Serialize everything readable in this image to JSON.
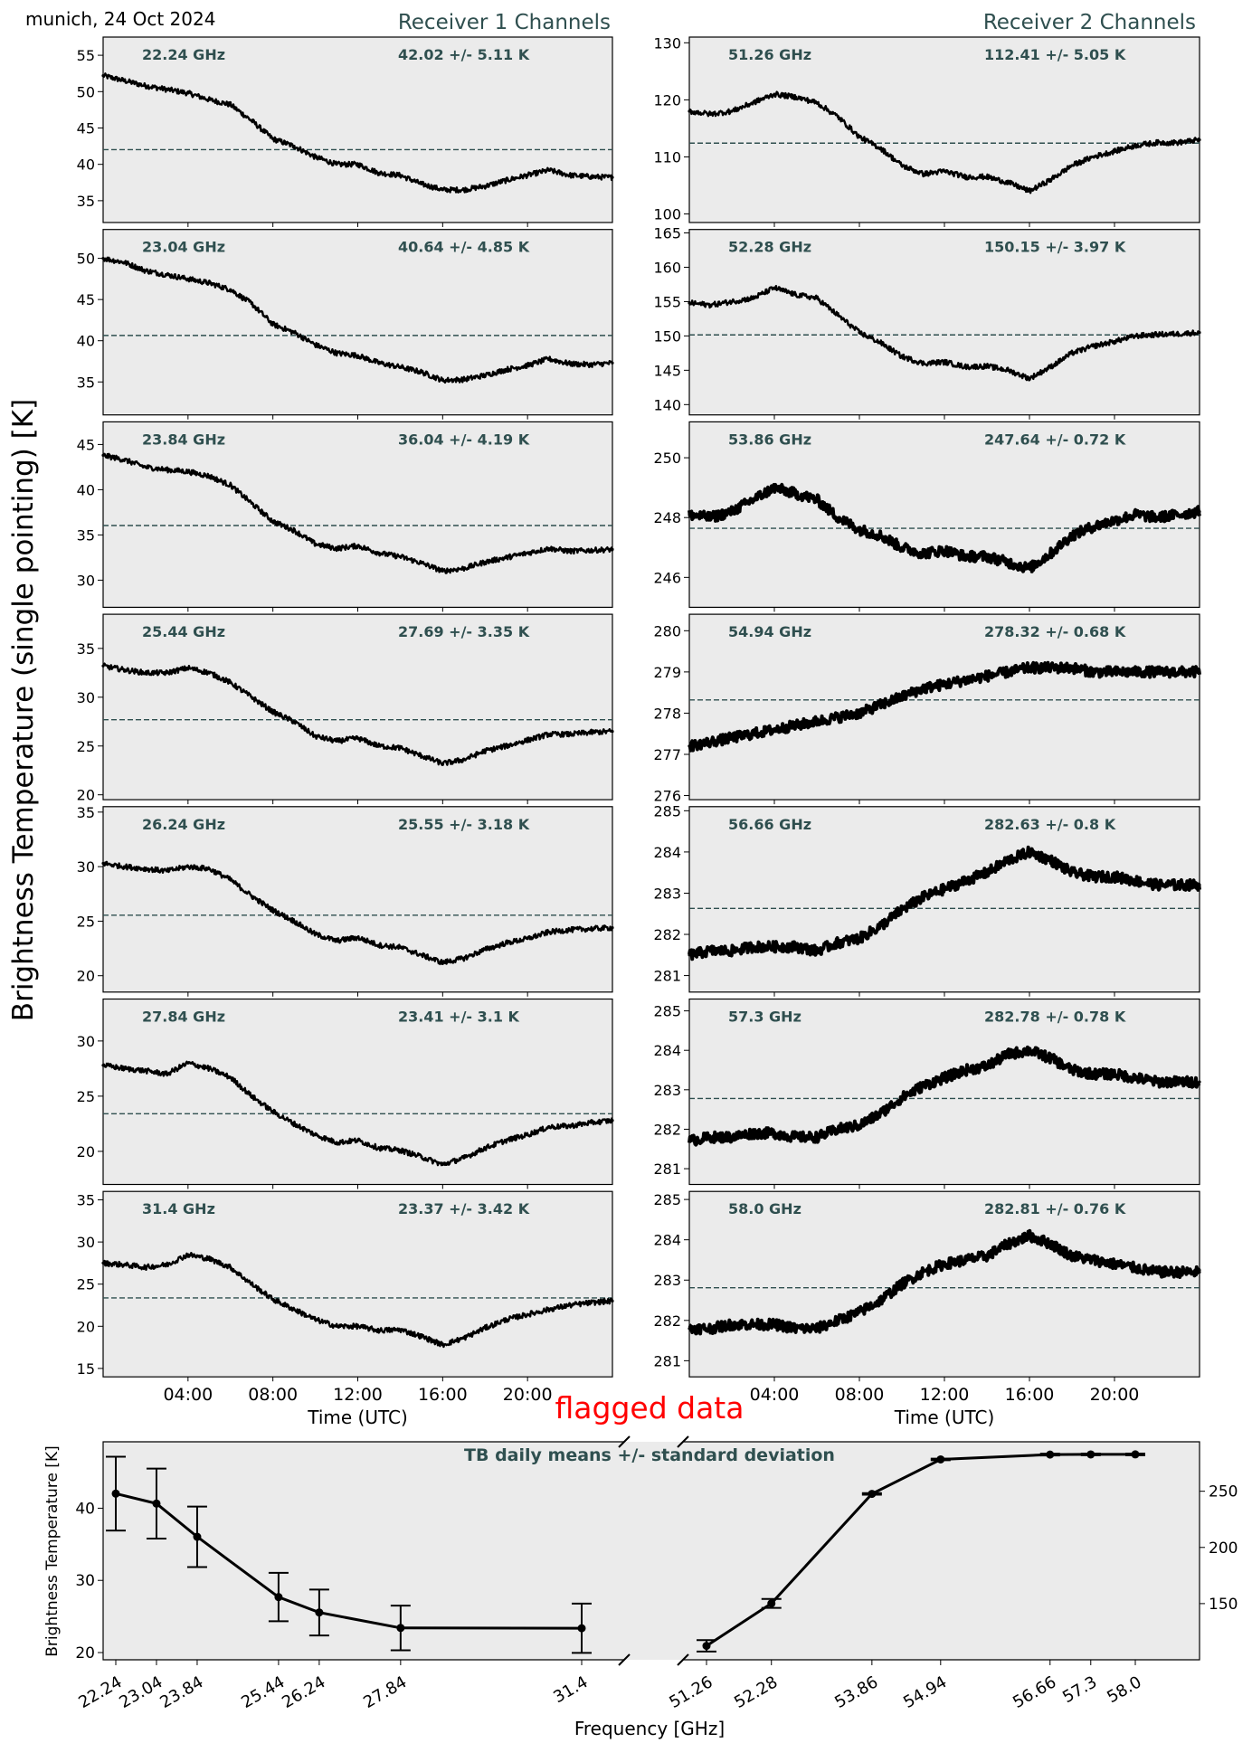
{
  "header": {
    "site_date": "munich, 24 Oct 2024",
    "receiver1_title": "Receiver 1 Channels",
    "receiver2_title": "Receiver 2 Channels",
    "y_label": "Brightness Temperature (single pointing) [K]",
    "flag_text": "flagged data"
  },
  "colors": {
    "panel_bg": "#ebebeb",
    "accent": "#2f4f4f",
    "line": "#000000",
    "flag": "#ff0000"
  },
  "chart_data": [
    {
      "type": "line",
      "receiver": "Receiver 1 Channels",
      "xlabel": "Time (UTC)",
      "xticks": [
        "04:00",
        "08:00",
        "12:00",
        "16:00",
        "20:00"
      ],
      "x_hours": [
        0,
        1,
        2,
        3,
        4,
        5,
        6,
        7,
        8,
        9,
        10,
        11,
        12,
        13,
        14,
        15,
        16,
        17,
        18,
        19,
        20,
        21,
        22,
        23,
        24
      ],
      "panels": [
        {
          "freq": "22.24 GHz",
          "stat": "42.02 +/- 5.11 K",
          "mean": 42.02,
          "ylim": [
            32,
            57.5
          ],
          "yticks": [
            35,
            40,
            45,
            50,
            55
          ],
          "values": [
            52.2,
            51.5,
            50.8,
            50.3,
            49.8,
            48.9,
            48.2,
            46.0,
            43.5,
            42.5,
            41.0,
            40.0,
            40.0,
            38.8,
            38.5,
            37.3,
            36.5,
            36.5,
            37.0,
            37.8,
            38.5,
            39.2,
            38.5,
            38.3,
            38.2
          ]
        },
        {
          "freq": "23.04 GHz",
          "stat": "40.64 +/- 4.85 K",
          "mean": 40.64,
          "ylim": [
            31,
            53.5
          ],
          "yticks": [
            35,
            40,
            45,
            50
          ],
          "values": [
            50.0,
            49.5,
            48.5,
            48.0,
            47.5,
            47.0,
            46.2,
            44.5,
            42.0,
            41.0,
            39.5,
            38.5,
            38.2,
            37.3,
            36.8,
            36.2,
            35.2,
            35.3,
            35.8,
            36.5,
            37.0,
            37.8,
            37.2,
            37.1,
            37.3
          ]
        },
        {
          "freq": "23.84 GHz",
          "stat": "36.04 +/- 4.19 K",
          "mean": 36.04,
          "ylim": [
            27,
            47.5
          ],
          "yticks": [
            30,
            35,
            40,
            45
          ],
          "values": [
            43.8,
            43.3,
            42.5,
            42.2,
            42.0,
            41.5,
            40.5,
            38.5,
            36.5,
            35.5,
            34.0,
            33.5,
            33.8,
            33.0,
            32.6,
            31.9,
            31.0,
            31.3,
            32.0,
            32.5,
            33.0,
            33.5,
            33.2,
            33.3,
            33.4
          ]
        },
        {
          "freq": "25.44 GHz",
          "stat": "27.69 +/- 3.35 K",
          "mean": 27.69,
          "ylim": [
            19.5,
            38.5
          ],
          "yticks": [
            20,
            25,
            30,
            35
          ],
          "values": [
            33.2,
            32.8,
            32.5,
            32.5,
            33.0,
            32.5,
            31.5,
            30.0,
            28.5,
            27.5,
            26.0,
            25.5,
            25.8,
            25.0,
            24.8,
            24.0,
            23.2,
            23.6,
            24.5,
            25.0,
            25.6,
            26.2,
            26.2,
            26.4,
            26.5
          ]
        },
        {
          "freq": "26.24 GHz",
          "stat": "25.55 +/- 3.18 K",
          "mean": 25.55,
          "ylim": [
            18.5,
            35.5
          ],
          "yticks": [
            20,
            25,
            30,
            35
          ],
          "values": [
            30.3,
            30.0,
            29.8,
            29.6,
            30.0,
            29.8,
            28.8,
            27.3,
            26.0,
            25.0,
            23.8,
            23.2,
            23.5,
            22.8,
            22.6,
            21.9,
            21.2,
            21.6,
            22.4,
            23.0,
            23.4,
            24.0,
            24.2,
            24.3,
            24.4
          ]
        },
        {
          "freq": "27.84 GHz",
          "stat": "23.41 +/- 3.1 K",
          "mean": 23.41,
          "ylim": [
            17,
            33.8
          ],
          "yticks": [
            20,
            25,
            30
          ],
          "values": [
            27.8,
            27.5,
            27.3,
            27.0,
            28.0,
            27.5,
            26.7,
            25.0,
            23.6,
            22.5,
            21.5,
            20.8,
            21.0,
            20.3,
            20.1,
            19.5,
            18.8,
            19.4,
            20.3,
            21.0,
            21.5,
            22.2,
            22.3,
            22.6,
            22.8
          ]
        },
        {
          "freq": "31.4 GHz",
          "stat": "23.37 +/- 3.42 K",
          "mean": 23.37,
          "ylim": [
            14,
            36
          ],
          "yticks": [
            15,
            20,
            25,
            30,
            35
          ],
          "values": [
            27.5,
            27.3,
            27.0,
            27.3,
            28.5,
            28.0,
            27.0,
            25.0,
            23.2,
            22.0,
            20.8,
            20.0,
            20.0,
            19.5,
            19.6,
            18.8,
            17.8,
            18.6,
            19.8,
            20.8,
            21.4,
            22.0,
            22.5,
            22.8,
            23.0
          ]
        }
      ]
    },
    {
      "type": "line",
      "receiver": "Receiver 2 Channels",
      "xlabel": "Time (UTC)",
      "xticks": [
        "04:00",
        "08:00",
        "12:00",
        "16:00",
        "20:00"
      ],
      "x_hours": [
        0,
        1,
        2,
        3,
        4,
        5,
        6,
        7,
        8,
        9,
        10,
        11,
        12,
        13,
        14,
        15,
        16,
        17,
        18,
        19,
        20,
        21,
        22,
        23,
        24
      ],
      "panels": [
        {
          "freq": "51.26 GHz",
          "stat": "112.41 +/- 5.05 K",
          "mean": 112.41,
          "ylim": [
            98.5,
            131
          ],
          "yticks": [
            100,
            110,
            120,
            130
          ],
          "values": [
            118.0,
            117.5,
            118.0,
            119.5,
            121.0,
            120.5,
            119.5,
            117.0,
            113.5,
            111.5,
            108.5,
            107.0,
            107.5,
            106.5,
            106.5,
            105.5,
            104.0,
            106.0,
            108.5,
            110.0,
            111.0,
            112.0,
            112.5,
            112.5,
            113.0
          ]
        },
        {
          "freq": "52.28 GHz",
          "stat": "150.15 +/- 3.97 K",
          "mean": 150.15,
          "ylim": [
            138.5,
            165.5
          ],
          "yticks": [
            140,
            145,
            150,
            155,
            160,
            165
          ],
          "values": [
            154.8,
            154.5,
            155.0,
            155.5,
            157.0,
            156.0,
            155.5,
            153.0,
            150.5,
            149.0,
            147.0,
            146.0,
            146.2,
            145.5,
            145.6,
            145.0,
            143.8,
            145.5,
            147.5,
            148.5,
            149.2,
            150.0,
            150.2,
            150.3,
            150.5
          ]
        },
        {
          "freq": "53.86 GHz",
          "stat": "247.64 +/- 0.72 K",
          "mean": 247.64,
          "ylim": [
            245.0,
            251.2
          ],
          "yticks": [
            246,
            248,
            250
          ],
          "values": [
            248.1,
            248.0,
            248.2,
            248.6,
            249.0,
            248.8,
            248.6,
            248.0,
            247.6,
            247.4,
            247.0,
            246.8,
            246.9,
            246.7,
            246.7,
            246.5,
            246.3,
            246.8,
            247.4,
            247.7,
            247.9,
            248.1,
            248.0,
            248.1,
            248.2
          ]
        },
        {
          "freq": "54.94 GHz",
          "stat": "278.32 +/- 0.68 K",
          "mean": 278.32,
          "ylim": [
            275.9,
            280.4
          ],
          "yticks": [
            276,
            277,
            278,
            279,
            280
          ],
          "values": [
            277.2,
            277.3,
            277.4,
            277.5,
            277.6,
            277.7,
            277.8,
            277.9,
            278.0,
            278.2,
            278.4,
            278.6,
            278.7,
            278.8,
            278.9,
            279.0,
            279.1,
            279.1,
            279.1,
            279.0,
            279.0,
            279.0,
            279.0,
            279.0,
            279.0
          ]
        },
        {
          "freq": "56.66 GHz",
          "stat": "282.63 +/- 0.8 K",
          "mean": 282.63,
          "ylim": [
            280.6,
            285.1
          ],
          "yticks": [
            281,
            282,
            283,
            284,
            285
          ],
          "values": [
            281.5,
            281.6,
            281.6,
            281.7,
            281.7,
            281.7,
            281.6,
            281.8,
            281.9,
            282.2,
            282.6,
            282.9,
            283.1,
            283.3,
            283.5,
            283.8,
            284.0,
            283.8,
            283.5,
            283.4,
            283.4,
            283.3,
            283.2,
            283.2,
            283.2
          ]
        },
        {
          "freq": "57.3 GHz",
          "stat": "282.78 +/- 0.78 K",
          "mean": 282.78,
          "ylim": [
            280.6,
            285.3
          ],
          "yticks": [
            281,
            282,
            283,
            284,
            285
          ],
          "values": [
            281.7,
            281.8,
            281.8,
            281.9,
            281.9,
            281.8,
            281.8,
            282.0,
            282.1,
            282.4,
            282.8,
            283.1,
            283.3,
            283.5,
            283.6,
            283.9,
            284.0,
            283.8,
            283.5,
            283.4,
            283.4,
            283.3,
            283.2,
            283.2,
            283.2
          ]
        },
        {
          "freq": "58.0 GHz",
          "stat": "282.81 +/- 0.76 K",
          "mean": 282.81,
          "ylim": [
            280.6,
            285.2
          ],
          "yticks": [
            281,
            282,
            283,
            284,
            285
          ],
          "values": [
            281.8,
            281.8,
            281.9,
            281.9,
            281.9,
            281.8,
            281.8,
            282.0,
            282.2,
            282.5,
            282.9,
            283.2,
            283.4,
            283.5,
            283.6,
            283.9,
            284.1,
            283.9,
            283.6,
            283.5,
            283.4,
            283.3,
            283.2,
            283.2,
            283.2
          ]
        }
      ]
    },
    {
      "type": "line",
      "title": "TB daily means +/- standard deviation",
      "xlabel": "Frequency [GHz]",
      "ylabel": "Brightness Temperature [K]",
      "left": {
        "ylim": [
          19,
          49.2
        ],
        "yticks": [
          20,
          30,
          40
        ],
        "freqs": [
          "22.24",
          "23.04",
          "23.84",
          "25.44",
          "26.24",
          "27.84",
          "31.4"
        ],
        "means": [
          42.02,
          40.64,
          36.04,
          27.69,
          25.55,
          23.41,
          23.37
        ],
        "stds": [
          5.11,
          4.85,
          4.19,
          3.35,
          3.18,
          3.1,
          3.42
        ]
      },
      "right": {
        "ylim": [
          100,
          294
        ],
        "yticks": [
          150,
          200,
          250
        ],
        "freqs": [
          "51.26",
          "52.28",
          "53.86",
          "54.94",
          "56.66",
          "57.3",
          "58.0"
        ],
        "means": [
          112.41,
          150.15,
          247.64,
          278.32,
          282.63,
          282.78,
          282.81
        ],
        "stds": [
          5.05,
          3.97,
          0.72,
          0.68,
          0.8,
          0.78,
          0.76
        ]
      }
    }
  ]
}
